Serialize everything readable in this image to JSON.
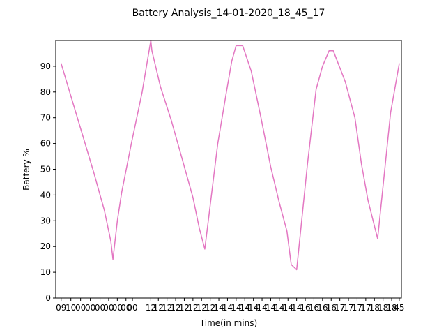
{
  "chart_data": {
    "type": "line",
    "title": "Battery Analysis_14-01-2020_18_45_17",
    "xlabel": "Time(in mins)",
    "ylabel": "Battery %",
    "ylim": [
      0,
      100
    ],
    "yticks": [
      0,
      10,
      20,
      30,
      40,
      50,
      60,
      70,
      80,
      90
    ],
    "xlim": [
      -0.5,
      31.5
    ],
    "xticks": [
      {
        "pos": 0.0,
        "label": "09"
      },
      {
        "pos": 0.9,
        "label": "10"
      },
      {
        "pos": 1.8,
        "label": "00"
      },
      {
        "pos": 2.7,
        "label": "00"
      },
      {
        "pos": 3.6,
        "label": "00"
      },
      {
        "pos": 4.4,
        "label": "00"
      },
      {
        "pos": 5.2,
        "label": "00"
      },
      {
        "pos": 6.0,
        "label": "00"
      },
      {
        "pos": 6.6,
        "label": "00"
      },
      {
        "pos": 8.3,
        "label": "12"
      },
      {
        "pos": 9.0,
        "label": "12"
      },
      {
        "pos": 9.8,
        "label": "12"
      },
      {
        "pos": 10.6,
        "label": "12"
      },
      {
        "pos": 11.4,
        "label": "12"
      },
      {
        "pos": 12.2,
        "label": "12"
      },
      {
        "pos": 13.0,
        "label": "12"
      },
      {
        "pos": 13.8,
        "label": "12"
      },
      {
        "pos": 14.6,
        "label": "14"
      },
      {
        "pos": 15.4,
        "label": "14"
      },
      {
        "pos": 16.2,
        "label": "14"
      },
      {
        "pos": 17.0,
        "label": "14"
      },
      {
        "pos": 17.8,
        "label": "14"
      },
      {
        "pos": 18.6,
        "label": "14"
      },
      {
        "pos": 19.4,
        "label": "14"
      },
      {
        "pos": 20.2,
        "label": "14"
      },
      {
        "pos": 21.0,
        "label": "14"
      },
      {
        "pos": 21.8,
        "label": "14"
      },
      {
        "pos": 22.6,
        "label": "16"
      },
      {
        "pos": 23.4,
        "label": "16"
      },
      {
        "pos": 24.2,
        "label": "16"
      },
      {
        "pos": 25.0,
        "label": "16"
      },
      {
        "pos": 25.8,
        "label": "17"
      },
      {
        "pos": 26.6,
        "label": "17"
      },
      {
        "pos": 27.4,
        "label": "17"
      },
      {
        "pos": 28.2,
        "label": "17"
      },
      {
        "pos": 29.0,
        "label": "18"
      },
      {
        "pos": 29.8,
        "label": "18"
      },
      {
        "pos": 30.6,
        "label": "18"
      },
      {
        "pos": 31.3,
        "label": "45"
      }
    ],
    "grid": false,
    "series": [
      {
        "color": "#e377c2",
        "x": [
          0,
          1.0,
          2.0,
          3.0,
          4.0,
          4.6,
          4.8,
          5.2,
          5.6,
          6.5,
          7.5,
          8.3,
          8.4,
          9.2,
          10.2,
          11.2,
          12.2,
          12.8,
          13.3,
          14.5,
          15.3,
          15.8,
          16.2,
          16.8,
          17.6,
          18.5,
          19.4,
          20.2,
          20.9,
          21.3,
          21.8,
          22.8,
          23.6,
          24.2,
          24.8,
          25.2,
          26.3,
          27.2,
          27.8,
          28.4,
          29.3,
          30.5,
          31.3
        ],
        "y": [
          91,
          77,
          63,
          49,
          34,
          22,
          15,
          30,
          41,
          60,
          80,
          100,
          96,
          82,
          69,
          54,
          39,
          27,
          19,
          60,
          80,
          92,
          98,
          98,
          88,
          70,
          51,
          37,
          26,
          13,
          11,
          52,
          81,
          90,
          96,
          96,
          84,
          70,
          52,
          38,
          23,
          72,
          91
        ]
      }
    ]
  }
}
